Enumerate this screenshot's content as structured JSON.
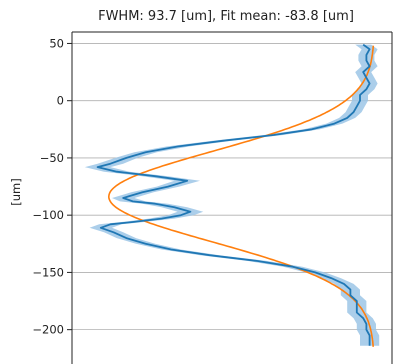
{
  "chart_data": {
    "type": "line",
    "title": "FWHM: 93.7 [um], Fit mean: -83.8 [um]",
    "xlabel": "",
    "ylabel": "[um]",
    "orientation": "vertical-profile",
    "ylim": [
      -230,
      60
    ],
    "xlim": [
      0,
      1
    ],
    "grid": "horizontal",
    "yticks": [
      50,
      0,
      -50,
      -100,
      -150,
      -200
    ],
    "ytick_labels": [
      "50",
      "0",
      "−50",
      "−100",
      "−150",
      "−200"
    ],
    "colors": {
      "measured": "#1f77b4",
      "band": "#9cc5e6",
      "fit": "#ff7f0e"
    },
    "series": [
      {
        "kind": "measured",
        "y": [
          49,
          45,
          40,
          35,
          30,
          25,
          20,
          15,
          10,
          5,
          0,
          -5,
          -10,
          -15,
          -20,
          -25,
          -30,
          -35,
          -40,
          -45,
          -50,
          -55,
          -58,
          -62,
          -66,
          -70,
          -75,
          -80,
          -85,
          -88,
          -90,
          -93,
          -97,
          -100,
          -103,
          -106,
          -108,
          -111,
          -115,
          -120,
          -125,
          -130,
          -135,
          -140,
          -145,
          -150,
          -155,
          -160,
          -165,
          -170,
          -175,
          -180,
          -185,
          -190,
          -195,
          -200,
          -205,
          -210,
          -214
        ],
        "x": [
          0.91,
          0.93,
          0.92,
          0.92,
          0.93,
          0.91,
          0.92,
          0.93,
          0.92,
          0.9,
          0.9,
          0.89,
          0.88,
          0.86,
          0.82,
          0.75,
          0.63,
          0.47,
          0.33,
          0.23,
          0.17,
          0.12,
          0.08,
          0.14,
          0.26,
          0.36,
          0.3,
          0.22,
          0.16,
          0.19,
          0.26,
          0.32,
          0.37,
          0.34,
          0.28,
          0.19,
          0.12,
          0.09,
          0.13,
          0.17,
          0.23,
          0.31,
          0.43,
          0.58,
          0.69,
          0.76,
          0.81,
          0.85,
          0.87,
          0.87,
          0.89,
          0.89,
          0.89,
          0.91,
          0.92,
          0.92,
          0.93,
          0.93,
          0.93
        ],
        "err": [
          0.025,
          0.025,
          0.025,
          0.025,
          0.025,
          0.025,
          0.025,
          0.025,
          0.025,
          0.025,
          0.025,
          0.025,
          0.025,
          0.025,
          0.025,
          0.025,
          0.03,
          0.03,
          0.035,
          0.035,
          0.035,
          0.04,
          0.04,
          0.04,
          0.04,
          0.04,
          0.035,
          0.035,
          0.035,
          0.04,
          0.04,
          0.04,
          0.04,
          0.04,
          0.04,
          0.035,
          0.035,
          0.035,
          0.03,
          0.03,
          0.03,
          0.03,
          0.03,
          0.03,
          0.03,
          0.03,
          0.03,
          0.03,
          0.03,
          0.03,
          0.03,
          0.03,
          0.03,
          0.03,
          0.03,
          0.03,
          0.03,
          0.03,
          0.03
        ]
      },
      {
        "kind": "fit",
        "curve": "inverted-gaussian",
        "mean": -83.8,
        "fwhm": 93.7,
        "baseline": 0.945,
        "depth": 0.83,
        "y_range": [
          -215,
          48
        ]
      }
    ]
  }
}
